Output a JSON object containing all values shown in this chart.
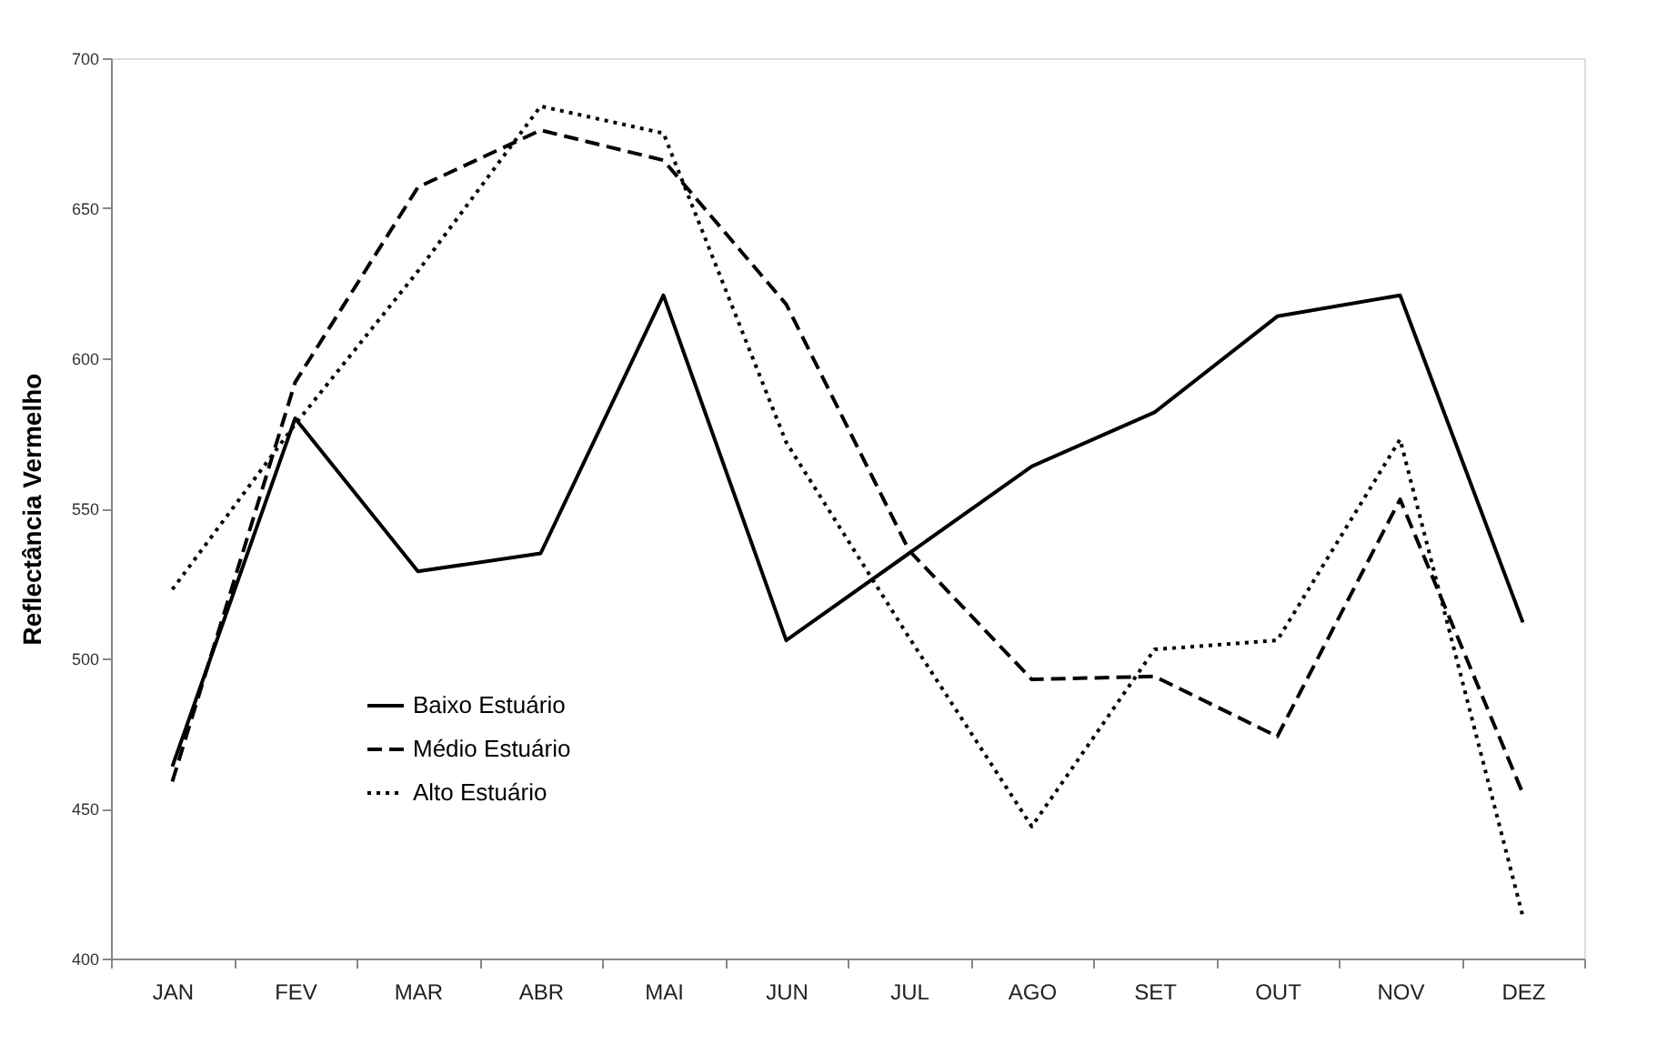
{
  "chart_data": {
    "type": "line",
    "ylabel": "Reflectância Vermelho",
    "categories": [
      "JAN",
      "FEV",
      "MAR",
      "ABR",
      "MAI",
      "JUN",
      "JUL",
      "AGO",
      "SET",
      "OUT",
      "NOV",
      "DEZ"
    ],
    "series": [
      {
        "name": "Baixo Estuário",
        "color": "#000000",
        "line_style": "solid",
        "values": [
          464,
          580,
          529,
          535,
          621,
          506,
          535,
          564,
          582,
          614,
          621,
          512
        ]
      },
      {
        "name": "Médio Estuário",
        "color": "#000000",
        "line_style": "dashed",
        "values": [
          459,
          592,
          657,
          676,
          666,
          618,
          536,
          493,
          494,
          474,
          553,
          455
        ]
      },
      {
        "name": "Alto Estuário",
        "color": "#000000",
        "line_style": "dotted",
        "values": [
          523,
          578,
          629,
          684,
          675,
          572,
          507,
          444,
          503,
          506,
          573,
          414
        ]
      }
    ],
    "ylim": [
      400,
      700
    ],
    "yticks": [
      400,
      450,
      500,
      550,
      600,
      650,
      700
    ],
    "grid": false,
    "legend": "bottom left",
    "marker": "none"
  }
}
